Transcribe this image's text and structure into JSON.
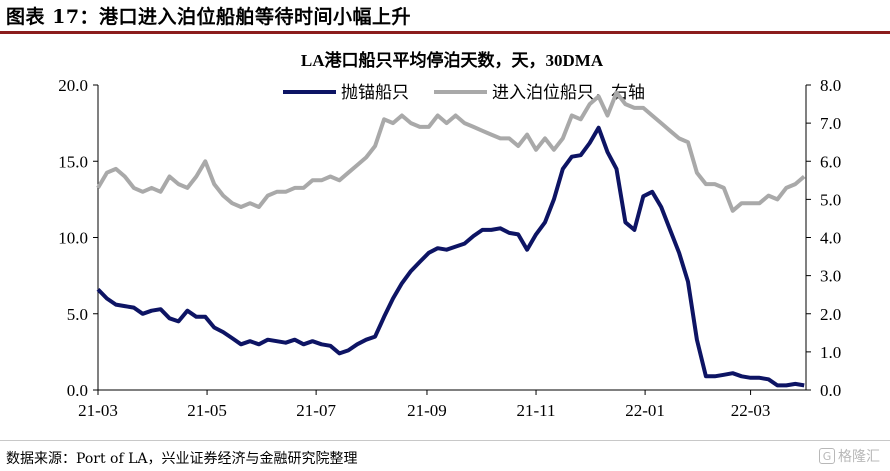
{
  "header": {
    "text": "图表 17：港口进入泊位船舶等待时间小幅上升"
  },
  "footer": {
    "source": "数据来源：Port of LA，兴业证券经济与金融研究院整理"
  },
  "watermark": {
    "text": "格隆汇",
    "icon": "G"
  },
  "colors": {
    "primary": "#0d1464",
    "secondary": "#a9a9a9",
    "header_rule": "#8b1d1d"
  },
  "chart_data": {
    "type": "line",
    "title": "LA港口船只平均停泊天数，天，30DMA",
    "x_ticks": [
      "21-03",
      "21-05",
      "21-07",
      "21-09",
      "21-11",
      "22-01",
      "22-03"
    ],
    "x": [
      "2021-03-01",
      "2021-03-06",
      "2021-03-11",
      "2021-03-16",
      "2021-03-21",
      "2021-03-26",
      "2021-03-31",
      "2021-04-05",
      "2021-04-10",
      "2021-04-15",
      "2021-04-20",
      "2021-04-25",
      "2021-04-30",
      "2021-05-05",
      "2021-05-10",
      "2021-05-15",
      "2021-05-20",
      "2021-05-25",
      "2021-05-30",
      "2021-06-04",
      "2021-06-09",
      "2021-06-14",
      "2021-06-19",
      "2021-06-24",
      "2021-06-29",
      "2021-07-04",
      "2021-07-09",
      "2021-07-14",
      "2021-07-19",
      "2021-07-24",
      "2021-07-29",
      "2021-08-03",
      "2021-08-08",
      "2021-08-13",
      "2021-08-18",
      "2021-08-23",
      "2021-08-28",
      "2021-09-02",
      "2021-09-07",
      "2021-09-12",
      "2021-09-17",
      "2021-09-22",
      "2021-09-27",
      "2021-10-02",
      "2021-10-07",
      "2021-10-12",
      "2021-10-17",
      "2021-10-22",
      "2021-10-27",
      "2021-11-01",
      "2021-11-06",
      "2021-11-11",
      "2021-11-16",
      "2021-11-21",
      "2021-11-26",
      "2021-12-01",
      "2021-12-06",
      "2021-12-11",
      "2021-12-16",
      "2021-12-21",
      "2021-12-26",
      "2021-12-31",
      "2022-01-05",
      "2022-01-10",
      "2022-01-15",
      "2022-01-20",
      "2022-01-25",
      "2022-01-30",
      "2022-02-04",
      "2022-02-09",
      "2022-02-14",
      "2022-02-19",
      "2022-02-24",
      "2022-03-01",
      "2022-03-06",
      "2022-03-11",
      "2022-03-16",
      "2022-03-21",
      "2022-03-26",
      "2022-03-31"
    ],
    "series": [
      {
        "name": "抛锚船只",
        "axis": "left",
        "color": "#0d1464",
        "values": [
          6.6,
          6.0,
          5.6,
          5.5,
          5.4,
          5.0,
          5.2,
          5.3,
          4.7,
          4.5,
          5.2,
          4.8,
          4.8,
          4.1,
          3.8,
          3.4,
          3.0,
          3.2,
          3.0,
          3.3,
          3.2,
          3.1,
          3.3,
          3.0,
          3.2,
          3.0,
          2.9,
          2.4,
          2.6,
          3.0,
          3.3,
          3.5,
          4.8,
          6.0,
          7.0,
          7.8,
          8.4,
          9.0,
          9.3,
          9.2,
          9.4,
          9.6,
          10.1,
          10.5,
          10.5,
          10.6,
          10.3,
          10.2,
          9.2,
          10.2,
          11.0,
          12.5,
          14.5,
          15.3,
          15.4,
          16.2,
          17.2,
          15.6,
          14.5,
          11.0,
          10.5,
          12.7,
          13.0,
          12.0,
          10.5,
          9.0,
          7.1,
          3.3,
          0.9,
          0.9,
          1.0,
          1.1,
          0.9,
          0.8,
          0.8,
          0.7,
          0.3,
          0.3,
          0.4,
          0.3
        ]
      },
      {
        "name": "进入泊位船只，右轴",
        "axis": "right",
        "color": "#a9a9a9",
        "values": [
          5.3,
          5.7,
          5.8,
          5.6,
          5.3,
          5.2,
          5.3,
          5.2,
          5.6,
          5.4,
          5.3,
          5.6,
          6.0,
          5.4,
          5.1,
          4.9,
          4.8,
          4.9,
          4.8,
          5.1,
          5.2,
          5.2,
          5.3,
          5.3,
          5.5,
          5.5,
          5.6,
          5.5,
          5.7,
          5.9,
          6.1,
          6.4,
          7.1,
          7.0,
          7.2,
          7.0,
          6.9,
          6.9,
          7.2,
          7.0,
          7.2,
          7.0,
          6.9,
          6.8,
          6.7,
          6.6,
          6.6,
          6.4,
          6.7,
          6.3,
          6.6,
          6.3,
          6.6,
          7.2,
          7.1,
          7.5,
          7.7,
          7.2,
          7.8,
          7.5,
          7.4,
          7.4,
          7.2,
          7.0,
          6.8,
          6.6,
          6.5,
          5.7,
          5.4,
          5.4,
          5.3,
          4.7,
          4.9,
          4.9,
          4.9,
          5.1,
          5.0,
          5.3,
          5.4,
          5.6
        ]
      }
    ],
    "y_left": {
      "ylim": [
        0,
        20
      ],
      "ticks": [
        "0.0",
        "5.0",
        "10.0",
        "15.0",
        "20.0"
      ]
    },
    "y_right": {
      "ylim": [
        0,
        8
      ],
      "ticks": [
        "0.0",
        "1.0",
        "2.0",
        "3.0",
        "4.0",
        "5.0",
        "6.0",
        "7.0",
        "8.0"
      ]
    },
    "legend_position": "top-center",
    "grid": false
  }
}
